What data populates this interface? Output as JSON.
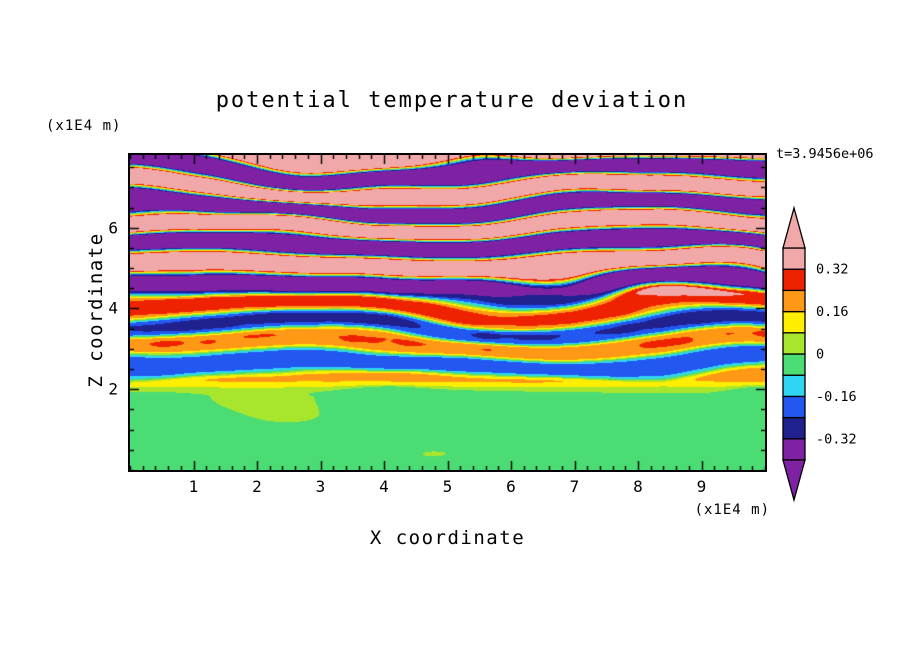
{
  "figure": {
    "title": "potential temperature deviation",
    "time_label": "t=3.9456e+06",
    "x_axis_label": "X coordinate",
    "x_axis_units": "(x1E4 m)",
    "y_axis_label": "Z coordinate",
    "y_axis_units": "(x1E4 m)"
  },
  "chart_data": {
    "type": "heatmap",
    "title": "potential temperature deviation",
    "xlabel": "X coordinate",
    "ylabel": "Z coordinate",
    "x_units": "(x1E4 m)",
    "y_units": "(x1E4 m)",
    "annotation": "t=3.9456e+06",
    "xlim": [
      0,
      10
    ],
    "ylim": [
      0,
      7.8
    ],
    "x_ticks": [
      1,
      2,
      3,
      4,
      5,
      6,
      7,
      8,
      9
    ],
    "y_ticks": [
      2,
      4,
      6
    ],
    "x_minor_step": 0.2,
    "y_minor_step": 0.5,
    "contour_levels": [
      -0.32,
      -0.24,
      -0.16,
      -0.08,
      0,
      0.08,
      0.16,
      0.24,
      0.32
    ],
    "fill_colors_low_to_high": [
      "#7e22a3",
      "#20208f",
      "#2257f0",
      "#30d5f2",
      "#4cdc74",
      "#a8e62e",
      "#ffee00",
      "#ff9915",
      "#ee2200",
      "#f0a8a8"
    ],
    "colorbar": {
      "tick_values": [
        0.32,
        0.16,
        0,
        -0.16,
        -0.32
      ],
      "tick_labels": [
        "0.32",
        "0.16",
        "0",
        "-0.16",
        "-0.32"
      ],
      "value_range": [
        -0.4,
        0.4
      ]
    },
    "field_model": {
      "amplitude_profile": [
        [
          0,
          0.045
        ],
        [
          1.8,
          0.05
        ],
        [
          2.3,
          0.2
        ],
        [
          4.2,
          0.28
        ],
        [
          4.8,
          0.5
        ],
        [
          7.8,
          0.52
        ]
      ],
      "vertical_wavenumber": 1.05,
      "phase_noise_amp": 0.45,
      "boundary_layer_top": 2.0,
      "boundary_mean": -0.025,
      "boundary_noise_amp": 0.05,
      "seed": 7
    },
    "frame_color": "#000000",
    "background_color": "#ffffff"
  }
}
